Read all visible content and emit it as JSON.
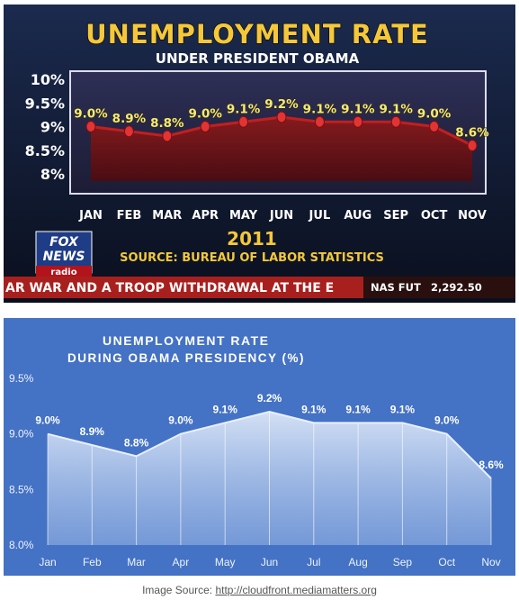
{
  "fox_graphic": {
    "title": "UNEMPLOYMENT RATE",
    "subtitle": "UNDER PRESIDENT OBAMA",
    "year": "2011",
    "source": "SOURCE: BUREAU OF LABOR STATISTICS",
    "logo_line1": "FOX",
    "logo_line2": "NEWS",
    "logo_line3": "radio",
    "ticker_text": "AR WAR AND A TROOP WITHDRAWAL AT THE E",
    "ticker_symbol": "NAS FUT",
    "ticker_value": "2,292.50",
    "colors": {
      "title": "#f4c83a",
      "line": "#b81e1e",
      "fill": "#7e1618",
      "point": "#d83030",
      "label": "#f2ec74"
    }
  },
  "chart_data": [
    {
      "type": "line",
      "categories": [
        "JAN",
        "FEB",
        "MAR",
        "APR",
        "MAY",
        "JUN",
        "JUL",
        "AUG",
        "SEP",
        "OCT",
        "NOV"
      ],
      "values": [
        9.0,
        8.9,
        8.8,
        9.0,
        9.1,
        9.2,
        9.1,
        9.1,
        9.1,
        9.0,
        8.6
      ],
      "data_labels": [
        "9.0%",
        "8.9%",
        "8.8%",
        "9.0%",
        "9.1%",
        "9.2%",
        "9.1%",
        "9.1%",
        "9.1%",
        "9.0%",
        "8.6%"
      ],
      "yticks": [
        "10%",
        "9.5%",
        "9%",
        "8.5%",
        "8%"
      ],
      "ytick_values": [
        10,
        9.5,
        9,
        8.5,
        8
      ],
      "ylim": [
        8,
        10
      ],
      "title": "UNEMPLOYMENT RATE",
      "subtitle": "UNDER PRESIDENT OBAMA",
      "xlabel": "2011",
      "ylabel": "",
      "grid": false
    },
    {
      "type": "area",
      "categories": [
        "Jan",
        "Feb",
        "Mar",
        "Apr",
        "May",
        "Jun",
        "Jul",
        "Aug",
        "Sep",
        "Oct",
        "Nov"
      ],
      "values": [
        9.0,
        8.9,
        8.8,
        9.0,
        9.1,
        9.2,
        9.1,
        9.1,
        9.1,
        9.0,
        8.6
      ],
      "data_labels": [
        "9.0%",
        "8.9%",
        "8.8%",
        "9.0%",
        "9.1%",
        "9.2%",
        "9.1%",
        "9.1%",
        "9.1%",
        "9.0%",
        "8.6%"
      ],
      "yticks": [
        "9.5%",
        "9.0%",
        "8.5%",
        "8.0%"
      ],
      "ytick_values": [
        9.5,
        9.0,
        8.5,
        8.0
      ],
      "ylim": [
        8.0,
        9.5
      ],
      "title_line1": "UNEMPLOYMENT RATE",
      "title_line2": "DURING OBAMA PRESIDENCY (%)",
      "xlabel": "",
      "ylabel": "",
      "grid": false
    }
  ],
  "caption": {
    "prefix": "Image Source: ",
    "link_text": "http://cloudfront.mediamatters.org"
  },
  "colors": {
    "panel_background": "#4472c4",
    "area_fill": "#dbe6f7"
  }
}
